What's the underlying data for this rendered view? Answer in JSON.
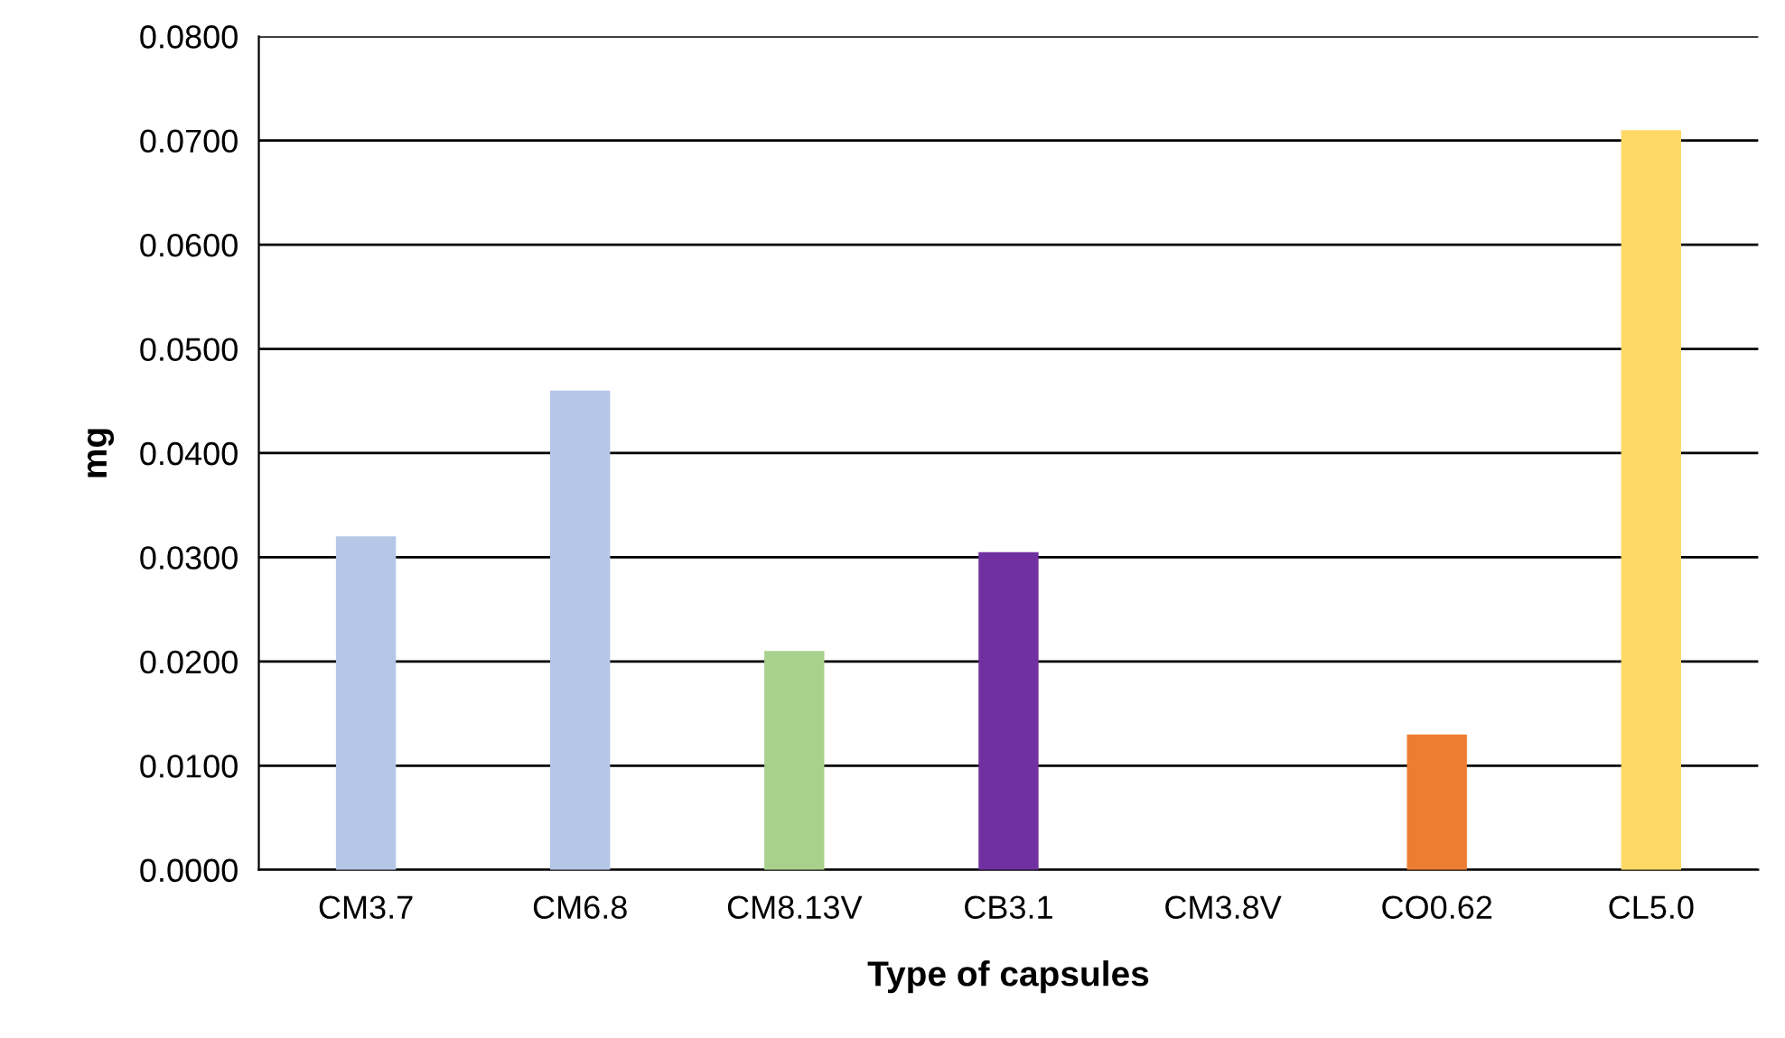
{
  "chart_data": {
    "type": "bar",
    "xlabel": "Type of capsules",
    "ylabel": "mg",
    "categories": [
      "CM3.7",
      "CM6.8",
      "CM8.13V",
      "CB3.1",
      "CM3.8V",
      "CO0.62",
      "CL5.0"
    ],
    "values": [
      0.032,
      0.046,
      0.021,
      0.0305,
      0,
      0.013,
      0.071
    ],
    "colors": [
      "#b4c7e7",
      "#b4c7e7",
      "#a9d18e",
      "#7030a0",
      "#b4c7e7",
      "#ed7d31",
      "#ffd966"
    ],
    "ylim": [
      0,
      0.08
    ],
    "yticks": [
      {
        "value": 0,
        "label": "0.0000"
      },
      {
        "value": 0.01,
        "label": "0.0100"
      },
      {
        "value": 0.02,
        "label": "0.0200"
      },
      {
        "value": 0.03,
        "label": "0.0300"
      },
      {
        "value": 0.04,
        "label": "0.0400"
      },
      {
        "value": 0.05,
        "label": "0.0500"
      },
      {
        "value": 0.06,
        "label": "0.0600"
      },
      {
        "value": 0.07,
        "label": "0.0700"
      },
      {
        "value": 0.08,
        "label": "0.0800"
      }
    ],
    "grid": "y"
  }
}
